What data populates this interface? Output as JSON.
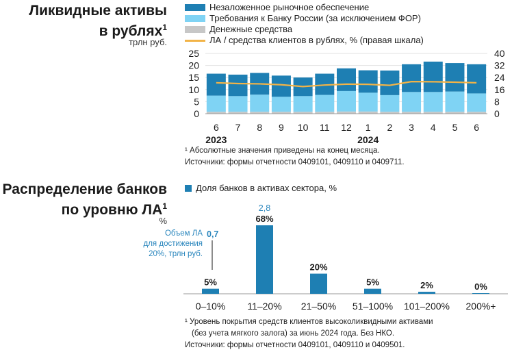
{
  "chart1": {
    "title_line1": "Ликвидные активы",
    "title_line2": "в рублях",
    "title_sup": "1",
    "unit": "трлн руб.",
    "footnote": "¹ Абсолютные значения приведены на конец месяца.",
    "source": "Источники: формы отчетности 0409101, 0409110 и 0409711.",
    "colors": {
      "unencumbered": "#1e7fb3",
      "claims": "#7fd3f4",
      "cash": "#c7c7c7",
      "line": "#f2b347"
    }
  },
  "chart2": {
    "title_line1": "Распределение банков",
    "title_line2": "по уровню ЛА",
    "title_sup": "1",
    "unit": "%",
    "legend": "Доля банков в активах сектора, %",
    "annotation_lines": [
      "Объем ЛА",
      "для достижения",
      "20%, трлн руб."
    ],
    "annotation_value_first": "0,7",
    "annotation_value_second": "2,8",
    "footnote_line1": "¹ Уровень покрытия средств клиентов высоколиквидными активами",
    "footnote_line2": "(без учета мягкого залога) за июнь 2024 года. Без НКО.",
    "source": "Источники: формы отчетности 0409101, 0409110 и 0409501.",
    "color": "#1e7fb3"
  },
  "chart_data": [
    {
      "type": "bar",
      "stacked": true,
      "categories": [
        "6",
        "7",
        "8",
        "9",
        "10",
        "11",
        "12",
        "1",
        "2",
        "3",
        "4",
        "5",
        "6"
      ],
      "year_labels": [
        "2023",
        "2024"
      ],
      "series": [
        {
          "name": "Денежные средства",
          "values": [
            0.8,
            0.8,
            0.8,
            0.8,
            0.8,
            0.8,
            0.9,
            0.9,
            0.8,
            0.8,
            0.8,
            0.8,
            0.8
          ]
        },
        {
          "name": "Требования к Банку России (за исключением ФОР)",
          "values": [
            6.7,
            6.5,
            7.1,
            6.2,
            6.5,
            7.0,
            8.5,
            7.8,
            6.9,
            8.2,
            8.2,
            8.4,
            7.6
          ]
        },
        {
          "name": "Незаложенное рыночное обеспечение",
          "values": [
            9.1,
            8.9,
            9.0,
            8.8,
            7.7,
            8.8,
            9.4,
            9.3,
            10.2,
            11.5,
            12.6,
            11.8,
            12.1
          ]
        }
      ],
      "line": {
        "name": "ЛА / средства клиентов в рублях, % (правая шкала)",
        "values": [
          20.5,
          20.0,
          19.8,
          19.2,
          18.0,
          19.0,
          19.6,
          19.5,
          18.8,
          21.3,
          21.2,
          20.9,
          20.5
        ]
      },
      "y_left": {
        "min": 0,
        "max": 25,
        "ticks": [
          "0",
          "5",
          "10",
          "15",
          "20",
          "25"
        ]
      },
      "y_right": {
        "min": 0,
        "max": 40,
        "ticks": [
          "0",
          "8",
          "16",
          "24",
          "32",
          "40"
        ]
      }
    },
    {
      "type": "bar",
      "categories": [
        "0–10%",
        "11–20%",
        "21–50%",
        "51–100%",
        "101–200%",
        "200%+"
      ],
      "values": [
        5,
        68,
        20,
        5,
        2,
        0
      ],
      "data_labels": [
        "5%",
        "68%",
        "20%",
        "5%",
        "2%",
        "0%"
      ],
      "legend": "Доля банков в активах сектора, %",
      "ylim": [
        0,
        70
      ]
    }
  ]
}
